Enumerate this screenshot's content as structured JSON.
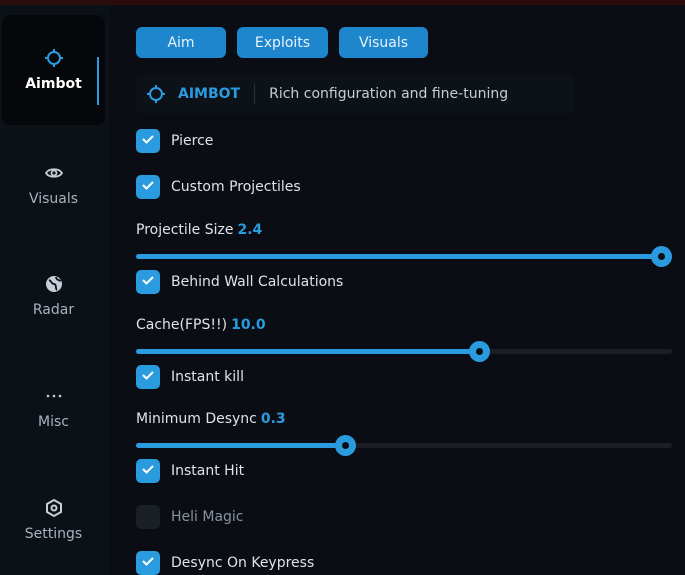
{
  "colors": {
    "accent": "#2b9be0",
    "background": "#0a0d13"
  },
  "sidebar": {
    "items": [
      {
        "label": "Aimbot",
        "icon": "crosshair-icon",
        "active": true
      },
      {
        "label": "Visuals",
        "icon": "eye-icon"
      },
      {
        "label": "Radar",
        "icon": "globe-icon"
      },
      {
        "label": "Misc",
        "icon": "more-dots-icon"
      },
      {
        "label": "Settings",
        "icon": "gear-icon"
      }
    ]
  },
  "tabs": [
    "Aim",
    "Exploits",
    "Visuals"
  ],
  "header": {
    "title": "AIMBOT",
    "description": "Rich configuration and fine-tuning"
  },
  "options": {
    "pierce": {
      "label": "Pierce",
      "checked": true
    },
    "custom_projectiles": {
      "label": "Custom Projectiles",
      "checked": true
    },
    "projectile_size": {
      "label": "Projectile Size",
      "value": "2.4",
      "fill_percent": 98
    },
    "behind_wall": {
      "label": "Behind Wall Calculations",
      "checked": true
    },
    "cache": {
      "label": "Cache(FPS!!)",
      "value": "10.0",
      "fill_percent": 64
    },
    "instant_kill": {
      "label": "Instant kill",
      "checked": true
    },
    "min_desync": {
      "label": "Minimum Desync",
      "value": "0.3",
      "fill_percent": 39
    },
    "instant_hit": {
      "label": "Instant Hit",
      "checked": true
    },
    "heli_magic": {
      "label": "Heli Magic",
      "checked": false
    },
    "desync_keypress": {
      "label": "Desync On Keypress",
      "checked": true
    }
  }
}
